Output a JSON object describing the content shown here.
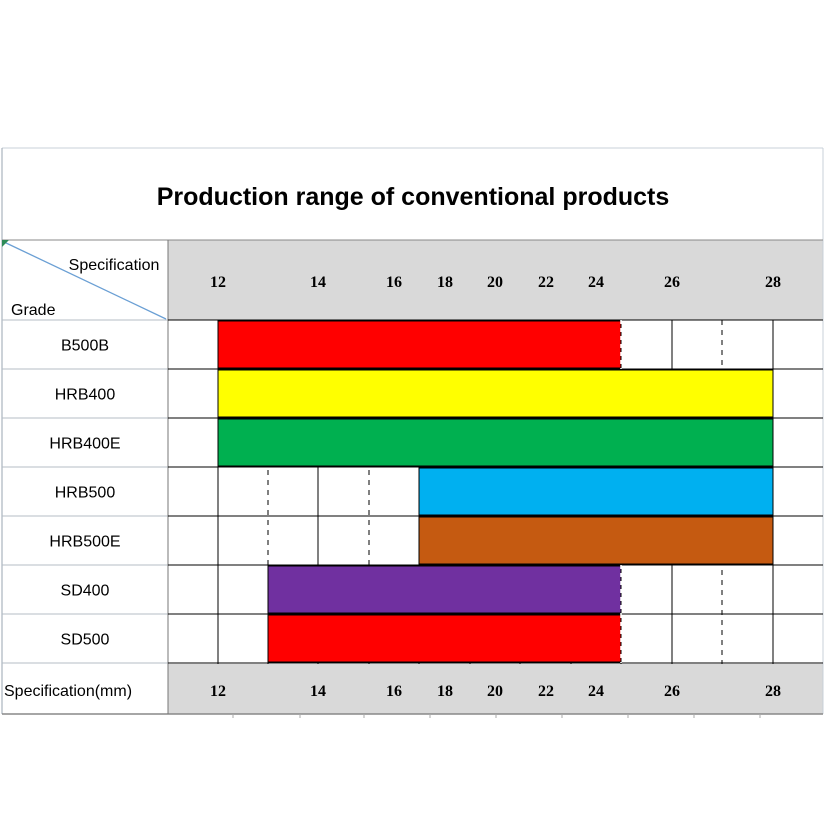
{
  "chart_data": {
    "type": "table",
    "title": "Production range of conventional products",
    "corner_top_label": "Specification",
    "corner_bottom_label": "Grade",
    "footer_label": "Specification(mm)",
    "x_ticks": [
      "12",
      "14",
      "16",
      "18",
      "20",
      "22",
      "24",
      "26",
      "28"
    ],
    "grades": [
      {
        "name": "B500B",
        "from": "12",
        "to": "25",
        "color": "#ff0000"
      },
      {
        "name": "HRB400",
        "from": "12",
        "to": "28",
        "color": "#ffff00"
      },
      {
        "name": "HRB400E",
        "from": "12",
        "to": "28",
        "color": "#00b050"
      },
      {
        "name": "HRB500",
        "from": "16",
        "to": "28",
        "color": "#00b0f0"
      },
      {
        "name": "HRB500E",
        "from": "16",
        "to": "28",
        "color": "#c55a11"
      },
      {
        "name": "SD400",
        "from": "13",
        "to": "25",
        "color": "#7030a0"
      },
      {
        "name": "SD500",
        "from": "13",
        "to": "25",
        "color": "#ff0000"
      }
    ],
    "header_fill": "#d9d9d9"
  }
}
